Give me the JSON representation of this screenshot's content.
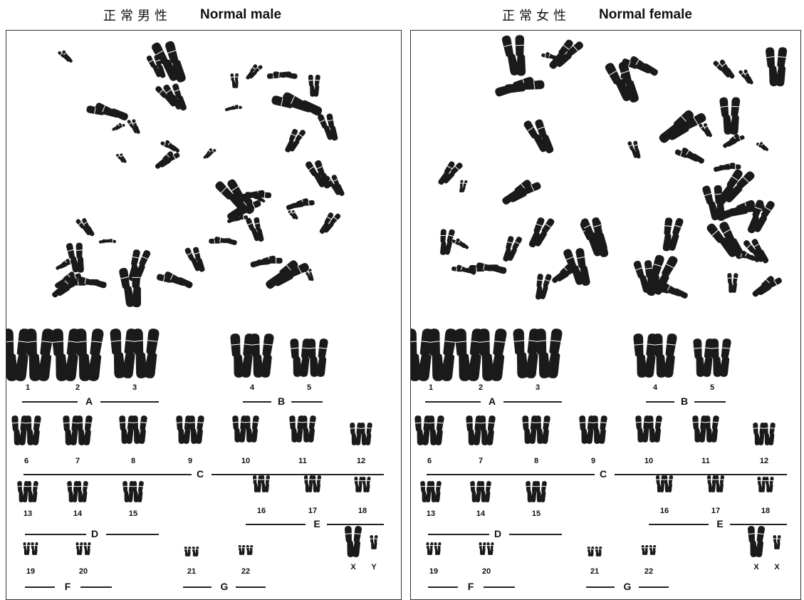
{
  "headers": {
    "male": {
      "zh": "正常男性",
      "en": "Normal male"
    },
    "female": {
      "zh": "正常女性",
      "en": "Normal female"
    }
  },
  "colors": {
    "chromosome": "#1a1a1a",
    "border": "#333333",
    "background": "#ffffff"
  },
  "male": {
    "numbers": [
      "1",
      "2",
      "3",
      "4",
      "5",
      "6",
      "7",
      "8",
      "9",
      "10",
      "11",
      "12",
      "13",
      "14",
      "15",
      "16",
      "17",
      "18",
      "19",
      "20",
      "21",
      "22",
      "X",
      "Y"
    ],
    "groups": [
      "A",
      "B",
      "C",
      "D",
      "E",
      "F",
      "G"
    ]
  },
  "female": {
    "numbers": [
      "1",
      "2",
      "3",
      "4",
      "5",
      "6",
      "7",
      "8",
      "9",
      "10",
      "11",
      "12",
      "13",
      "14",
      "15",
      "16",
      "17",
      "18",
      "19",
      "20",
      "21",
      "22",
      "X",
      "X"
    ],
    "groups": [
      "A",
      "B",
      "C",
      "D",
      "E",
      "F",
      "G"
    ]
  }
}
